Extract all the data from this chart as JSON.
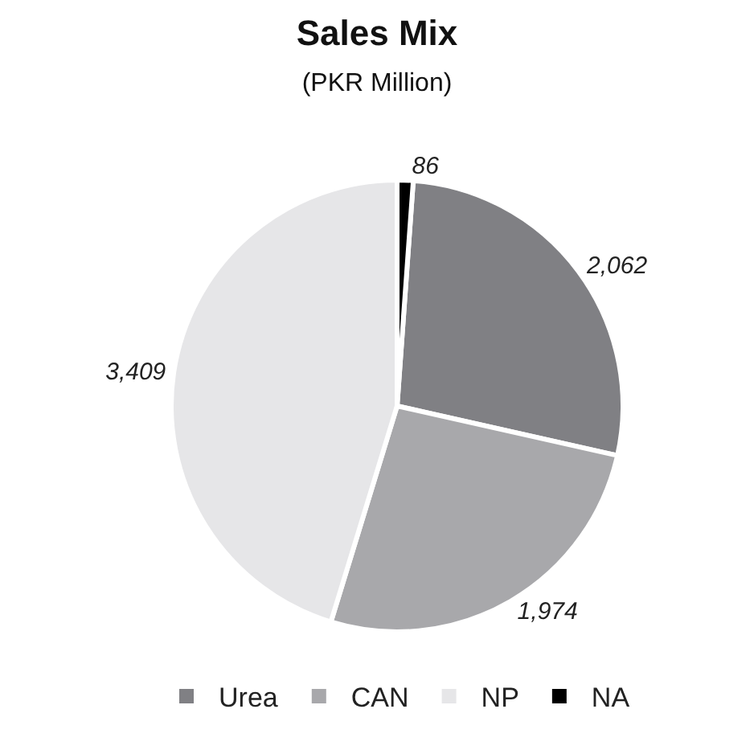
{
  "chart_data": {
    "type": "pie",
    "title": "Sales Mix",
    "subtitle": "(PKR Million)",
    "categories": [
      "Urea",
      "CAN",
      "NP",
      "NA"
    ],
    "values": [
      2062,
      1974,
      3409,
      86
    ],
    "value_labels": [
      "2,062",
      "1,974",
      "3,409",
      "86"
    ],
    "colors": [
      "#808084",
      "#a8a8ab",
      "#e6e6e8",
      "#000000"
    ],
    "legend": "bottom"
  }
}
